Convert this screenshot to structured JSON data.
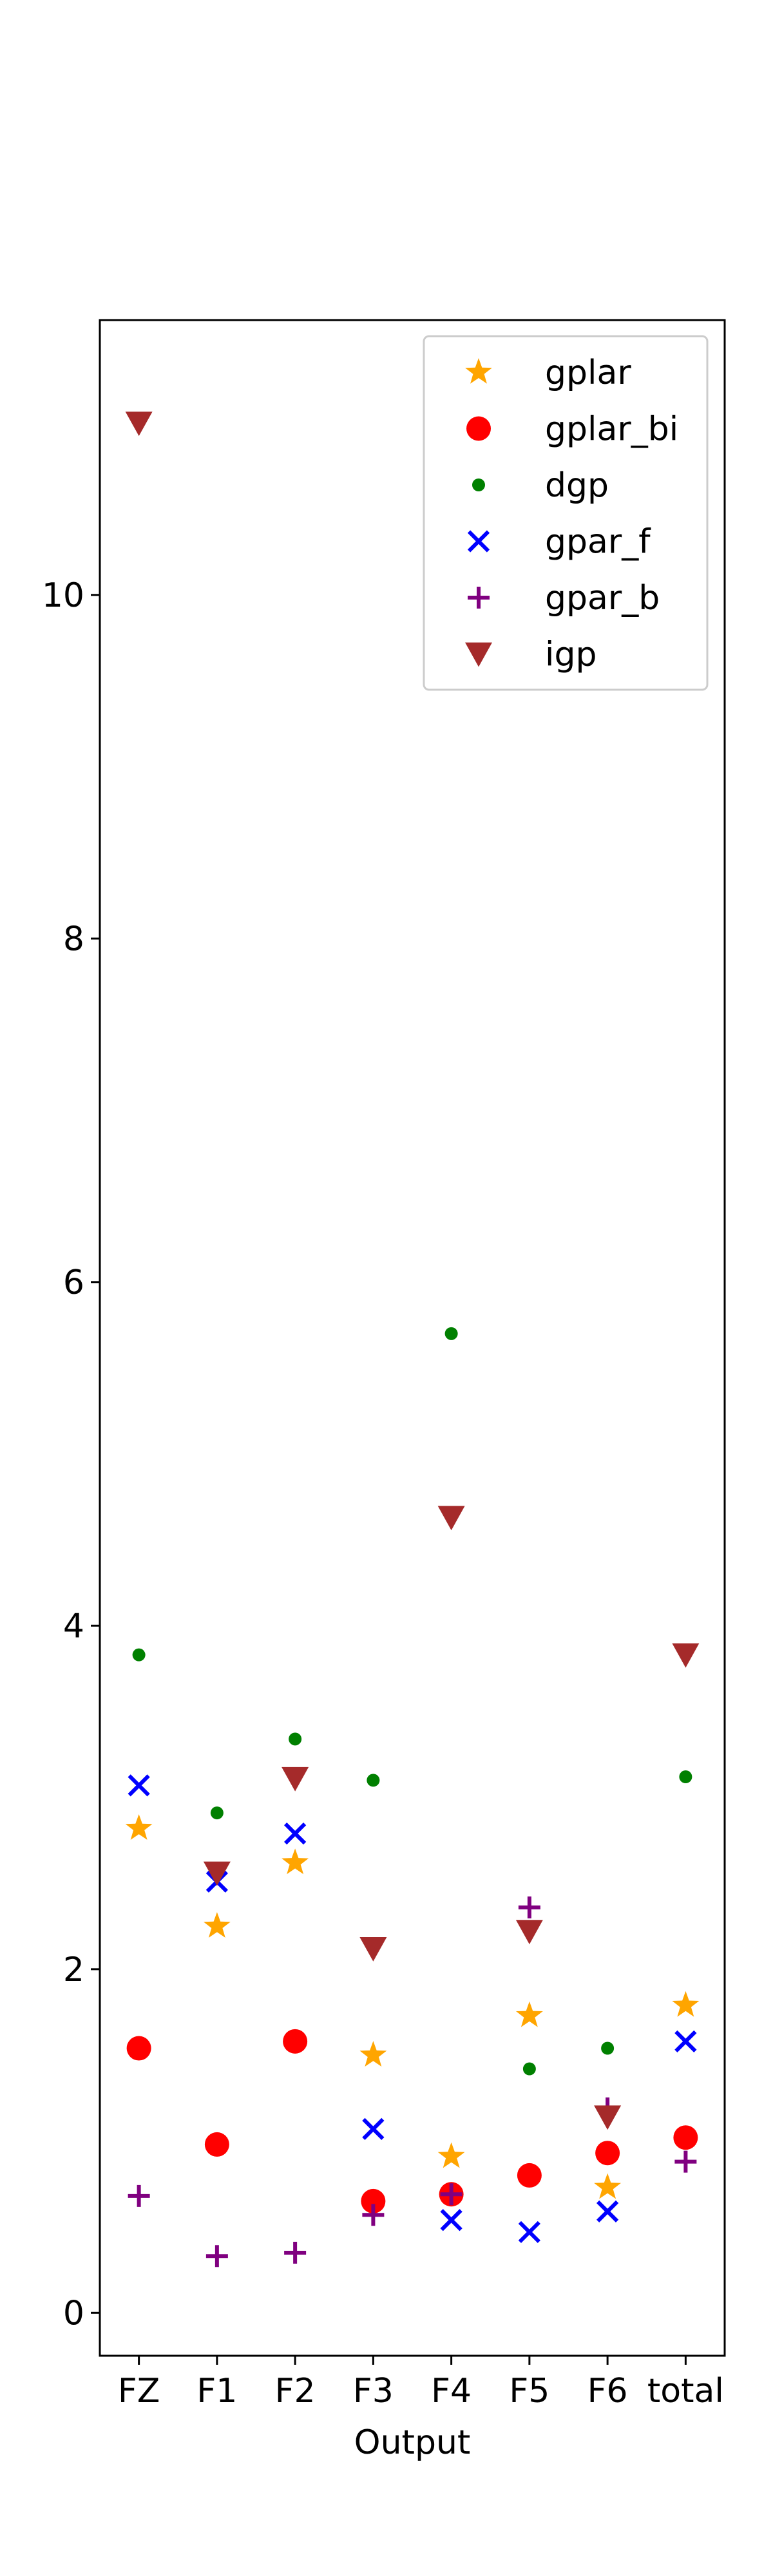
{
  "chart_data": {
    "type": "scatter",
    "title": "",
    "xlabel": "Output",
    "ylabel": "",
    "categories": [
      "FZ",
      "F1",
      "F2",
      "F3",
      "F4",
      "F5",
      "F6",
      "total"
    ],
    "yticks": [
      "0",
      "2",
      "4",
      "6",
      "8",
      "10"
    ],
    "ylim": [
      -0.25,
      11.6
    ],
    "grid": false,
    "legend_position": "top-right",
    "series": [
      {
        "name": "gplar",
        "marker": "star",
        "color": "#ffa500",
        "values": [
          2.82,
          2.25,
          2.62,
          1.5,
          0.91,
          1.73,
          0.73,
          1.79
        ]
      },
      {
        "name": "gplar_bi",
        "marker": "circle",
        "color": "#ff0000",
        "values": [
          1.54,
          0.98,
          1.58,
          0.65,
          0.69,
          0.8,
          0.93,
          1.02
        ]
      },
      {
        "name": "dgp",
        "marker": "dot",
        "color": "#008000",
        "values": [
          3.83,
          2.91,
          3.34,
          3.1,
          5.7,
          1.42,
          1.54,
          3.12
        ]
      },
      {
        "name": "gpar_f",
        "marker": "x",
        "color": "#0000ff",
        "values": [
          3.07,
          2.51,
          2.79,
          1.07,
          0.54,
          0.47,
          0.59,
          1.58
        ]
      },
      {
        "name": "gpar_b",
        "marker": "plus",
        "color": "#800080",
        "values": [
          0.68,
          0.33,
          0.35,
          0.57,
          0.69,
          2.36,
          1.19,
          0.88
        ]
      },
      {
        "name": "igp",
        "marker": "triangle-down",
        "color": "#a52a2a",
        "values": [
          11.0,
          2.56,
          3.11,
          2.12,
          4.63,
          2.22,
          1.14,
          3.83
        ]
      }
    ]
  }
}
